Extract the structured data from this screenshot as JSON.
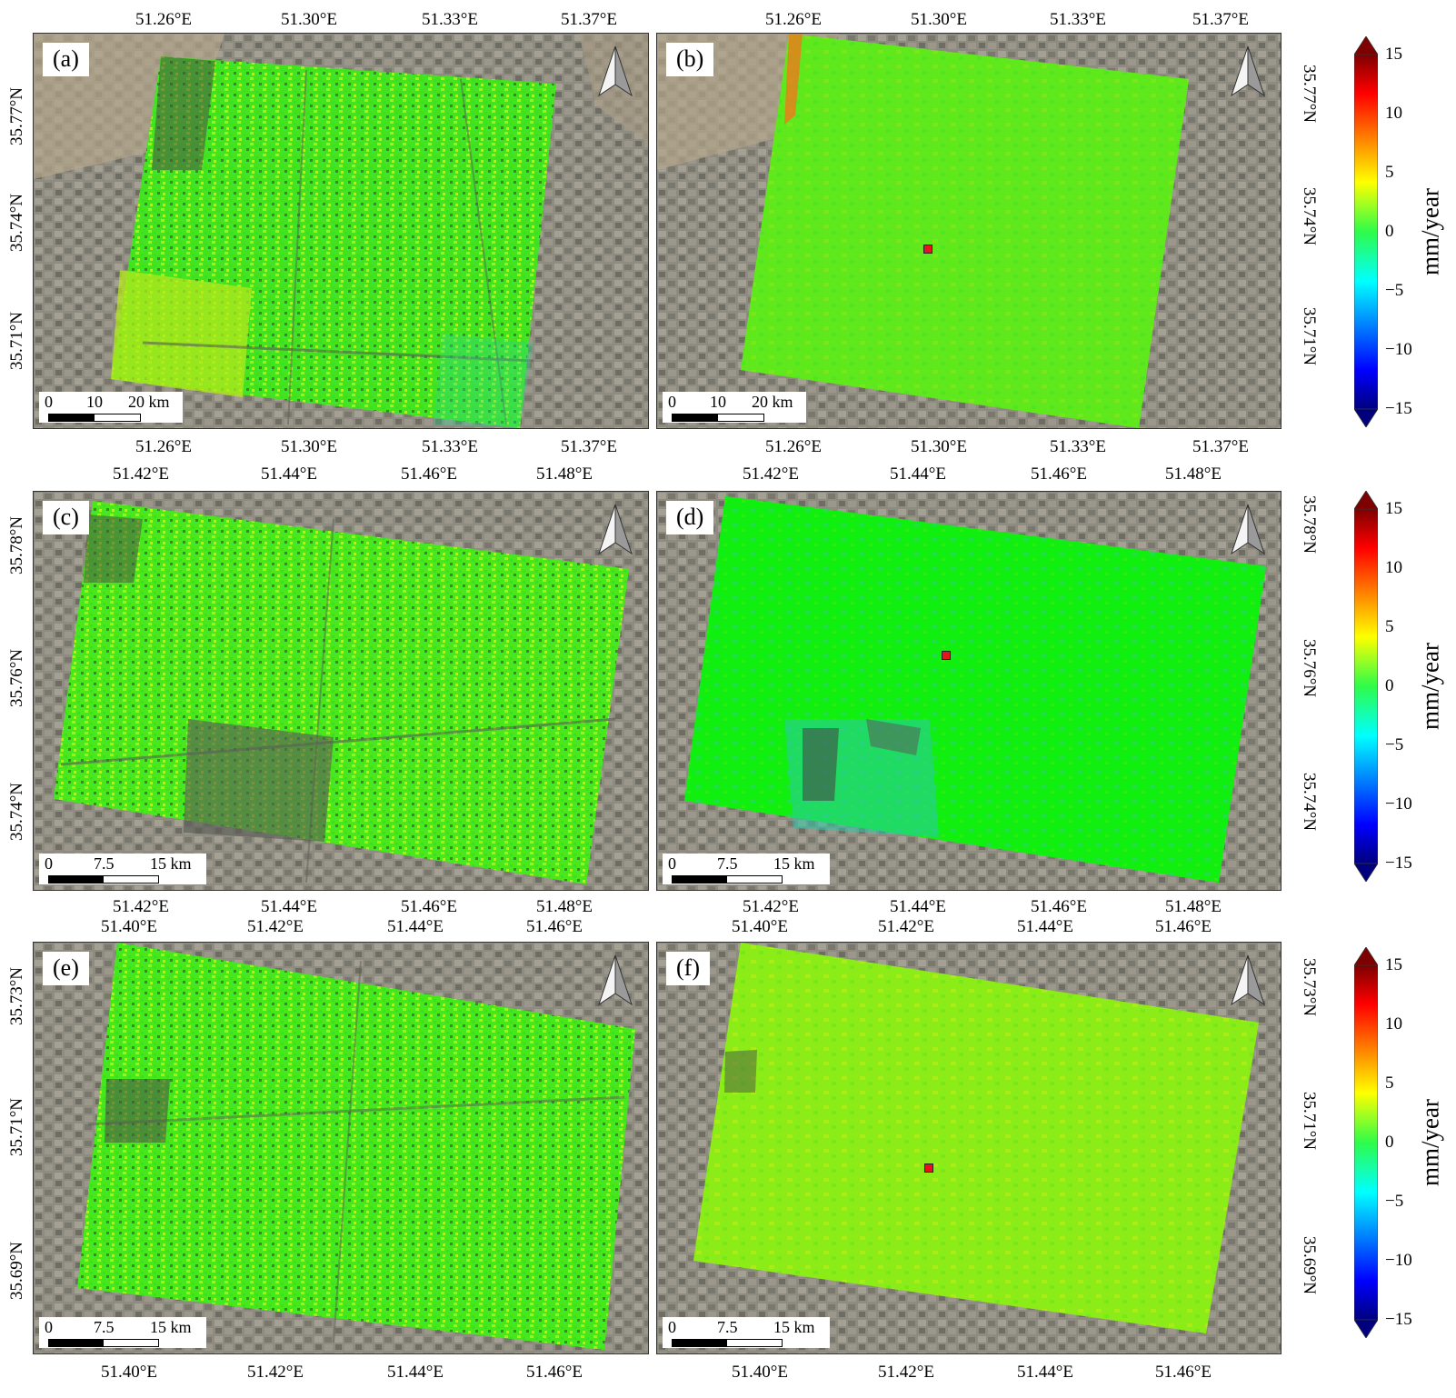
{
  "panels": [
    {
      "label": "(a)",
      "top_ticks": [
        "51.26°E",
        "51.30°E",
        "51.33°E",
        "51.37°E"
      ],
      "bottom_ticks": [
        "51.26°E",
        "51.30°E",
        "51.33°E",
        "51.37°E"
      ],
      "left_ticks": [
        "35.77°N",
        "35.74°N",
        "35.71°N"
      ],
      "scale": {
        "t0": "0",
        "t1": "10",
        "t2": "20 km"
      },
      "overlay": "dense-points",
      "marker": false
    },
    {
      "label": "(b)",
      "top_ticks": [
        "51.26°E",
        "51.30°E",
        "51.33°E",
        "51.37°E"
      ],
      "bottom_ticks": [
        "51.26°E",
        "51.30°E",
        "51.33°E",
        "51.37°E"
      ],
      "right_ticks": [
        "35.77°N",
        "35.74°N",
        "35.71°N"
      ],
      "scale": {
        "t0": "0",
        "t1": "10",
        "t2": "20 km"
      },
      "overlay": "interpolated",
      "marker": true
    },
    {
      "label": "(c)",
      "top_ticks": [
        "51.42°E",
        "51.44°E",
        "51.46°E",
        "51.48°E"
      ],
      "bottom_ticks": [
        "51.42°E",
        "51.44°E",
        "51.46°E",
        "51.48°E"
      ],
      "left_ticks": [
        "35.78°N",
        "35.76°N",
        "35.74°N"
      ],
      "scale": {
        "t0": "0",
        "t1": "7.5",
        "t2": "15 km"
      },
      "overlay": "dense-points",
      "marker": false
    },
    {
      "label": "(d)",
      "top_ticks": [
        "51.42°E",
        "51.44°E",
        "51.46°E",
        "51.48°E"
      ],
      "bottom_ticks": [
        "51.42°E",
        "51.44°E",
        "51.46°E",
        "51.48°E"
      ],
      "right_ticks": [
        "35.78°N",
        "35.76°N",
        "35.74°N"
      ],
      "scale": {
        "t0": "0",
        "t1": "7.5",
        "t2": "15 km"
      },
      "overlay": "interpolated",
      "marker": true
    },
    {
      "label": "(e)",
      "top_ticks": [
        "51.40°E",
        "51.42°E",
        "51.44°E",
        "51.46°E"
      ],
      "bottom_ticks": [
        "51.40°E",
        "51.42°E",
        "51.44°E",
        "51.46°E"
      ],
      "left_ticks": [
        "35.73°N",
        "35.71°N",
        "35.69°N"
      ],
      "scale": {
        "t0": "0",
        "t1": "7.5",
        "t2": "15 km"
      },
      "overlay": "dense-points",
      "marker": false
    },
    {
      "label": "(f)",
      "top_ticks": [
        "51.40°E",
        "51.42°E",
        "51.44°E",
        "51.46°E"
      ],
      "bottom_ticks": [
        "51.40°E",
        "51.42°E",
        "51.44°E",
        "51.46°E"
      ],
      "right_ticks": [
        "35.73°N",
        "35.71°N",
        "35.69°N"
      ],
      "scale": {
        "t0": "0",
        "t1": "7.5",
        "t2": "15 km"
      },
      "overlay": "interpolated",
      "marker": true
    }
  ],
  "colorbar": {
    "label": "mm/year",
    "ticks": [
      "15",
      "10",
      "5",
      "0",
      "−5",
      "−10",
      "−15"
    ],
    "values": [
      15,
      10,
      5,
      0,
      -5,
      -10,
      -15
    ],
    "range": [
      -15,
      15
    ],
    "colormap": "jet",
    "extend": "both"
  },
  "colors": {
    "satellite_base": "#8d8a7e",
    "overlay_green": "#3ff013",
    "overlay_yellowgreen": "#9bf014",
    "marker": "#e8141c"
  },
  "icons": {
    "north_arrow": "north-arrow-icon",
    "marker": "reference-point-marker"
  }
}
